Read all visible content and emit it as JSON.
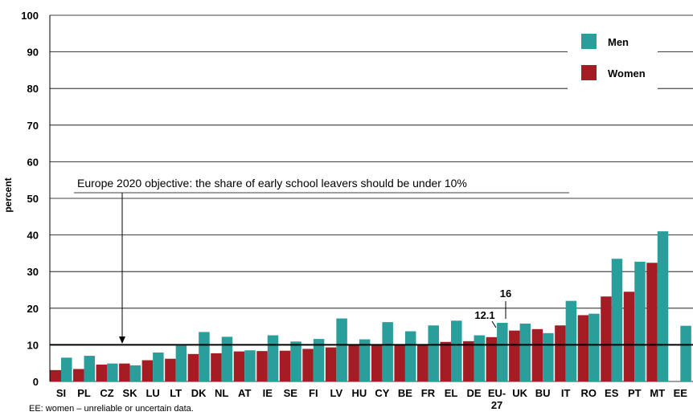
{
  "chart_data": {
    "type": "bar",
    "ylabel": "percent",
    "ylim": [
      0,
      100
    ],
    "yticks": [
      0,
      10,
      20,
      30,
      40,
      50,
      60,
      70,
      80,
      90,
      100
    ],
    "grid": true,
    "legend_position": "top-right",
    "categories": [
      "SI",
      "PL",
      "CZ",
      "SK",
      "LU",
      "LT",
      "DK",
      "NL",
      "AT",
      "IE",
      "SE",
      "FI",
      "LV",
      "HU",
      "CY",
      "BE",
      "FR",
      "EL",
      "DE",
      "EU-27",
      "UK",
      "BU",
      "IT",
      "RO",
      "ES",
      "PT",
      "MT",
      "EE"
    ],
    "series": [
      {
        "name": "Women",
        "color": "#a51d24",
        "values": [
          3.1,
          3.4,
          4.6,
          4.9,
          5.8,
          6.2,
          7.5,
          7.7,
          8.2,
          8.3,
          8.4,
          8.9,
          9.3,
          9.9,
          10.0,
          10.0,
          10.2,
          10.8,
          11.0,
          12.1,
          13.9,
          14.3,
          15.3,
          18.1,
          23.2,
          24.5,
          32.4,
          null
        ]
      },
      {
        "name": "Men",
        "color": "#2a9e9a",
        "values": [
          6.5,
          7.0,
          4.9,
          4.4,
          7.9,
          9.8,
          13.5,
          12.2,
          8.5,
          12.6,
          10.9,
          11.6,
          17.2,
          11.5,
          16.2,
          13.7,
          15.3,
          16.6,
          12.6,
          16.0,
          15.8,
          13.2,
          22.0,
          18.5,
          33.5,
          32.7,
          41.0,
          15.2
        ]
      }
    ],
    "data_labels": {
      "women_eu27": "12.1",
      "men_eu27": "16"
    },
    "reference_line": {
      "value": 10,
      "label": "Europe 2020 objective: the share of early school leavers should be under 10%"
    },
    "footnote": "EE: women – unreliable or uncertain data."
  }
}
